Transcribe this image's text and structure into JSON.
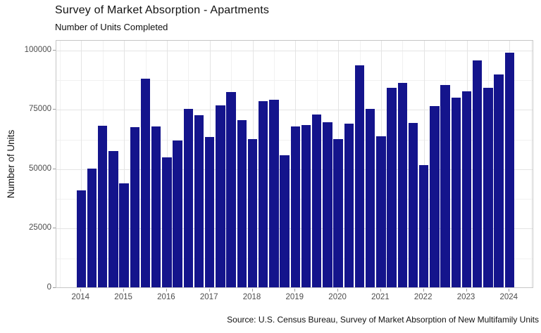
{
  "header": {
    "title": "Survey of Market Absorption - Apartments",
    "subtitle": "Number of Units Completed"
  },
  "footer": {
    "caption": "Source: U.S. Census Bureau, Survey of Market Absorption of New Multifamily Units"
  },
  "chart_data": {
    "type": "bar",
    "title": "Survey of Market Absorption - Apartments",
    "subtitle": "Number of Units Completed",
    "xlabel": "",
    "ylabel": "Number of Units",
    "caption": "Source: U.S. Census Bureau, Survey of Market Absorption of New Multifamily Units",
    "x": [
      "2014 Q1",
      "2014 Q2",
      "2014 Q3",
      "2014 Q4",
      "2015 Q1",
      "2015 Q2",
      "2015 Q3",
      "2015 Q4",
      "2016 Q1",
      "2016 Q2",
      "2016 Q3",
      "2016 Q4",
      "2017 Q1",
      "2017 Q2",
      "2017 Q3",
      "2017 Q4",
      "2018 Q1",
      "2018 Q2",
      "2018 Q3",
      "2018 Q4",
      "2019 Q1",
      "2019 Q2",
      "2019 Q3",
      "2019 Q4",
      "2020 Q1",
      "2020 Q2",
      "2020 Q3",
      "2020 Q4",
      "2021 Q1",
      "2021 Q2",
      "2021 Q3",
      "2021 Q4",
      "2022 Q1",
      "2022 Q2",
      "2022 Q3",
      "2022 Q4",
      "2023 Q1",
      "2023 Q2",
      "2023 Q3",
      "2023 Q4",
      "2024 Q1"
    ],
    "values": [
      41100,
      50200,
      68300,
      57800,
      44000,
      67700,
      88100,
      67900,
      54900,
      62200,
      75300,
      72800,
      63600,
      76800,
      82500,
      70600,
      62800,
      78700,
      79200,
      55900,
      67900,
      68500,
      73100,
      69700,
      62600,
      69200,
      93600,
      75400,
      63900,
      84200,
      86200,
      69500,
      51800,
      76600,
      85300,
      80000,
      82800,
      95900,
      84300,
      89800,
      99000
    ],
    "x_tick_labels": [
      "2014",
      "2015",
      "2016",
      "2017",
      "2018",
      "2019",
      "2020",
      "2021",
      "2022",
      "2023",
      "2024"
    ],
    "y_ticks": [
      0,
      25000,
      50000,
      75000,
      100000
    ],
    "y_tick_labels": [
      "0",
      "25000",
      "50000",
      "75000",
      "100000"
    ],
    "y_minor_ticks": [
      12500,
      37500,
      62500,
      87500
    ],
    "ylim": [
      0,
      104000
    ],
    "grid": "major+minor horizontal and vertical, light gray",
    "legend": "none",
    "bar_color": "#14148c",
    "panel_border_color": "#c6c6c6",
    "grid_major_color": "#e4e4e4",
    "grid_minor_color": "#f1f1f1",
    "tick_color": "#9a9a9a",
    "tick_label_color": "#4d4d4d"
  }
}
